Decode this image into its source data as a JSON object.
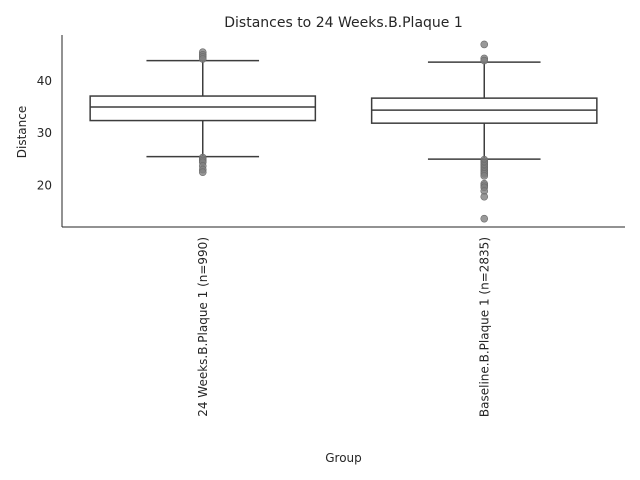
{
  "chart_data": {
    "type": "box",
    "title": "Distances to 24 Weeks.B.Plaque 1",
    "xlabel": "Group",
    "ylabel": "Distance",
    "ylim": [
      12,
      48.8
    ],
    "yticks": [
      20,
      30,
      40
    ],
    "grid": false,
    "categories": [
      "24 Weeks.B.Plaque 1 (n=990)",
      "Baseline.B.Plaque 1 (n=2835)"
    ],
    "boxes": [
      {
        "q1": 32.4,
        "median": 35.0,
        "q3": 37.1,
        "whisker_low": 25.5,
        "whisker_high": 43.9,
        "outliers": [
          45.5,
          45.0,
          44.6,
          44.2,
          25.3,
          25.0,
          24.7,
          24.4,
          23.7,
          23.0,
          22.5
        ]
      },
      {
        "q1": 31.9,
        "median": 34.4,
        "q3": 36.7,
        "whisker_low": 25.0,
        "whisker_high": 43.6,
        "outliers": [
          47.0,
          44.3,
          43.9,
          24.9,
          24.6,
          24.3,
          24.0,
          23.7,
          23.4,
          23.1,
          22.8,
          22.5,
          22.2,
          21.8,
          20.3,
          20.0,
          19.6,
          18.9,
          17.8,
          13.6
        ]
      }
    ]
  }
}
